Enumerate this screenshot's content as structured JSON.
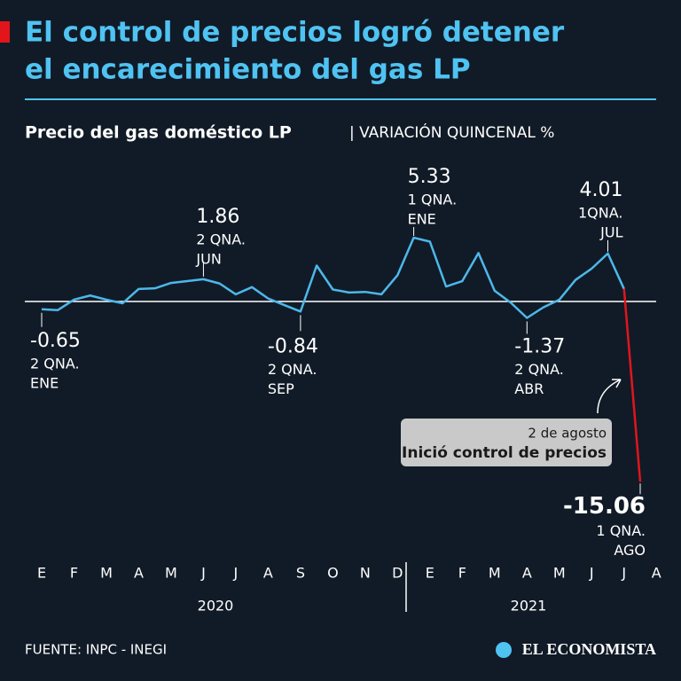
{
  "chart_data": {
    "type": "line",
    "title": [
      "El control de precios logró detener",
      "el encarecimiento del gas LP"
    ],
    "subtitle": "Precio del gas doméstico LP",
    "unit_label": "| VARIACIÓN QUINCENAL %",
    "x": [
      0,
      0.5,
      1,
      1.5,
      2,
      2.5,
      3,
      3.5,
      4,
      4.5,
      5,
      5.5,
      6,
      6.5,
      7,
      7.5,
      8,
      8.5,
      9,
      9.5,
      10,
      10.5,
      11,
      11.5,
      12,
      12.5,
      13,
      13.5,
      14,
      14.5,
      15,
      15.5,
      16,
      16.5,
      17,
      17.5,
      18,
      18.5
    ],
    "series": [
      {
        "color": "#4db8ea",
        "values": [
          -0.65,
          -0.72,
          0.15,
          0.5,
          0.15,
          -0.15,
          1.05,
          1.1,
          1.55,
          1.7,
          1.86,
          1.5,
          0.6,
          1.2,
          0.25,
          -0.3,
          -0.84,
          3.0,
          1.0,
          0.75,
          0.8,
          0.6,
          2.2,
          5.33,
          5.0,
          1.25,
          1.7,
          4.05,
          0.9,
          -0.1,
          -1.37,
          -0.5,
          0.15,
          1.8,
          2.75,
          4.01,
          1.05,
          -15.06
        ]
      }
    ],
    "highlight_color": "#e3151a",
    "point_labels": [
      [
        "2 QNA.",
        "ENE"
      ],
      null,
      null,
      null,
      null,
      null,
      null,
      null,
      null,
      null,
      [
        "2 QNA.",
        "JUN"
      ],
      null,
      null,
      null,
      null,
      null,
      [
        "2 QNA.",
        "SEP"
      ],
      null,
      null,
      null,
      null,
      null,
      null,
      [
        "1 QNA.",
        "ENE"
      ],
      null,
      null,
      null,
      null,
      null,
      null,
      [
        "2 QNA.",
        "ABR"
      ],
      null,
      null,
      null,
      null,
      [
        "1QNA.",
        "JUL"
      ],
      null,
      [
        "1 QNA.",
        "AGO"
      ]
    ],
    "xlim": [
      0,
      18.5
    ],
    "xticks": [
      {
        "value": 0,
        "label": "E"
      },
      {
        "value": 1,
        "label": "F"
      },
      {
        "value": 2,
        "label": "M"
      },
      {
        "value": 3,
        "label": "A"
      },
      {
        "value": 4,
        "label": "M"
      },
      {
        "value": 5,
        "label": "J"
      },
      {
        "value": 6,
        "label": "J"
      },
      {
        "value": 7,
        "label": "A"
      },
      {
        "value": 8,
        "label": "S"
      },
      {
        "value": 9,
        "label": "O"
      },
      {
        "value": 10,
        "label": "N"
      },
      {
        "value": 11,
        "label": "D"
      },
      {
        "value": 12,
        "label": "E"
      },
      {
        "value": 13,
        "label": "F"
      },
      {
        "value": 14,
        "label": "M"
      },
      {
        "value": 15,
        "label": "A"
      },
      {
        "value": 16,
        "label": "M"
      },
      {
        "value": 17,
        "label": "J"
      },
      {
        "value": 18,
        "label": "J"
      },
      {
        "value": 19,
        "label": "A"
      }
    ],
    "years": [
      "2020",
      "2021"
    ],
    "ylim": [
      -16,
      6
    ],
    "yticks": [
      0
    ],
    "annotation": [
      "2 de agosto",
      "Inició control de precios"
    ],
    "source": "FUENTE: INPC - INEGI",
    "brand": "EL ECONOMISTA"
  }
}
